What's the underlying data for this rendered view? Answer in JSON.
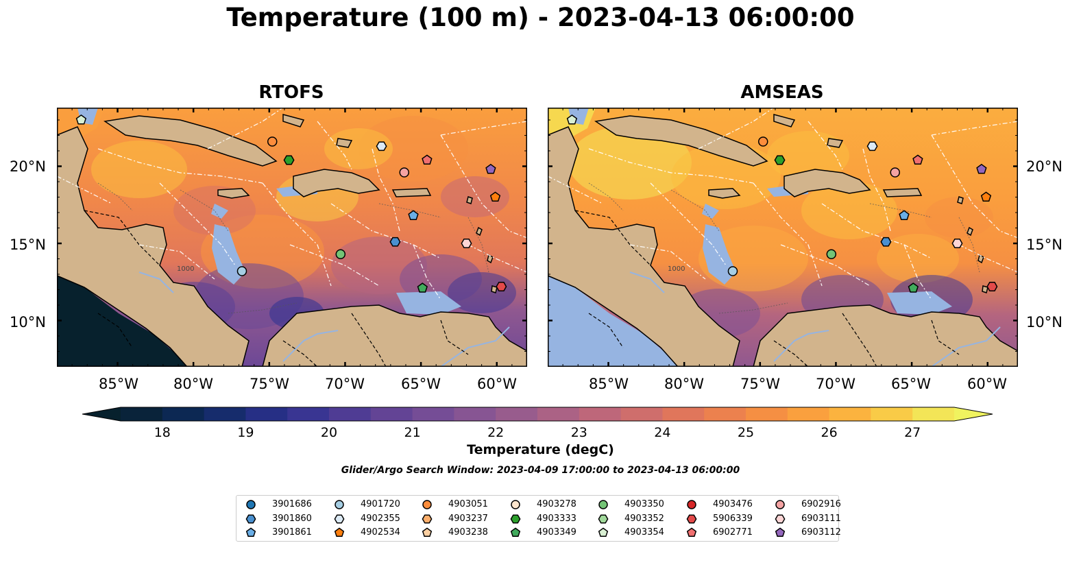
{
  "title": "Temperature (100 m) - 2023-04-13 06:00:00",
  "panels": [
    {
      "name": "RTOFS"
    },
    {
      "name": "AMSEAS"
    }
  ],
  "lat_labels": [
    "20°N",
    "15°N",
    "10°N"
  ],
  "lon_labels": [
    "85°W",
    "80°W",
    "75°W",
    "70°W",
    "65°W",
    "60°W"
  ],
  "colorbar": {
    "label": "Temperature (degC)",
    "ticks": [
      "18",
      "19",
      "20",
      "21",
      "22",
      "23",
      "24",
      "25",
      "26",
      "27"
    ],
    "min": 17.5,
    "max": 27.5
  },
  "search_window": "Glider/Argo Search Window: 2023-04-09 17:00:00 to 2023-04-13 06:00:00",
  "contour_label": "1000",
  "colors": {
    "land": "#d2b48c",
    "shallow_water": "#96b4e1",
    "grid": "#ffffff"
  },
  "legend": [
    {
      "id": "3901686",
      "shape": "circle",
      "color": "#1f77b4"
    },
    {
      "id": "3901860",
      "shape": "hexagon",
      "color": "#4a90cf"
    },
    {
      "id": "3901861",
      "shape": "pentagon",
      "color": "#6aaee6"
    },
    {
      "id": "4901720",
      "shape": "circle",
      "color": "#a6cee3"
    },
    {
      "id": "4902355",
      "shape": "hexagon",
      "color": "#dceaf5"
    },
    {
      "id": "4902534",
      "shape": "pentagon",
      "color": "#ff7f0e"
    },
    {
      "id": "4903051",
      "shape": "circle",
      "color": "#fd8d3c"
    },
    {
      "id": "4903237",
      "shape": "hexagon",
      "color": "#fdae6b"
    },
    {
      "id": "4903238",
      "shape": "pentagon",
      "color": "#fdd0a2"
    },
    {
      "id": "4903278",
      "shape": "circle",
      "color": "#fee6ce"
    },
    {
      "id": "4903333",
      "shape": "hexagon",
      "color": "#2ca02c"
    },
    {
      "id": "4903349",
      "shape": "pentagon",
      "color": "#41ab5d"
    },
    {
      "id": "4903350",
      "shape": "circle",
      "color": "#74c476"
    },
    {
      "id": "4903352",
      "shape": "hexagon",
      "color": "#a1d99b"
    },
    {
      "id": "4903354",
      "shape": "pentagon",
      "color": "#d9f0d3"
    },
    {
      "id": "4903476",
      "shape": "circle",
      "color": "#d62728"
    },
    {
      "id": "5906339",
      "shape": "hexagon",
      "color": "#e34a4a"
    },
    {
      "id": "6902771",
      "shape": "pentagon",
      "color": "#f07070"
    },
    {
      "id": "6902916",
      "shape": "circle",
      "color": "#f4a3a3"
    },
    {
      "id": "6903111",
      "shape": "hexagon",
      "color": "#fcd5d5"
    },
    {
      "id": "6903112",
      "shape": "pentagon",
      "color": "#9467bd"
    }
  ],
  "floats": [
    {
      "id": "4903354",
      "lon": -87.4,
      "lat": 23.0
    },
    {
      "id": "4903051",
      "lon": -74.8,
      "lat": 21.6
    },
    {
      "id": "4903333",
      "lon": -73.7,
      "lat": 20.4
    },
    {
      "id": "4902355",
      "lon": -67.6,
      "lat": 21.3
    },
    {
      "id": "6902916",
      "lon": -66.1,
      "lat": 19.6
    },
    {
      "id": "6902771",
      "lon": -64.6,
      "lat": 20.4
    },
    {
      "id": "6903112",
      "lon": -60.4,
      "lat": 19.8
    },
    {
      "id": "4902534",
      "lon": -60.1,
      "lat": 18.0
    },
    {
      "id": "3901861",
      "lon": -65.5,
      "lat": 16.8
    },
    {
      "id": "3901860",
      "lon": -66.7,
      "lat": 15.1
    },
    {
      "id": "6903111",
      "lon": -62.0,
      "lat": 15.0
    },
    {
      "id": "4903350",
      "lon": -70.3,
      "lat": 14.3
    },
    {
      "id": "4901720",
      "lon": -76.8,
      "lat": 13.2
    },
    {
      "id": "4903349",
      "lon": -64.9,
      "lat": 12.1
    },
    {
      "id": "5906339",
      "lon": -59.7,
      "lat": 12.2
    }
  ]
}
